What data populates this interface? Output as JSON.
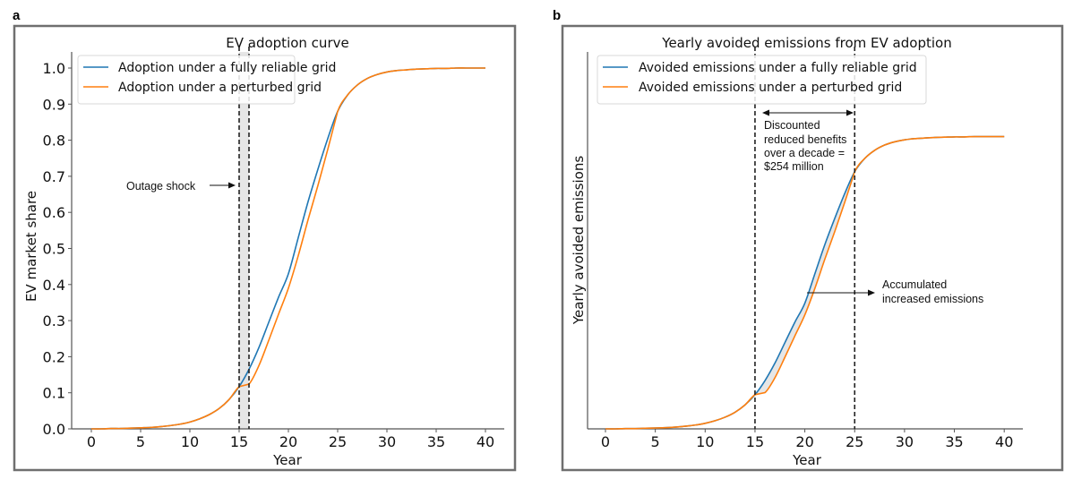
{
  "chart_data": [
    {
      "panel_label": "a",
      "type": "line",
      "title": "EV adoption curve",
      "xlabel": "Year",
      "ylabel": "EV market share",
      "xlim": [
        -2,
        42
      ],
      "ylim": [
        0,
        1.04
      ],
      "xticks": [
        0,
        5,
        10,
        15,
        20,
        25,
        30,
        35,
        40
      ],
      "yticks": [
        0.0,
        0.1,
        0.2,
        0.3,
        0.4,
        0.5,
        0.6,
        0.7,
        0.8,
        0.9,
        1.0
      ],
      "ytick_labels": [
        "0.0",
        "0.1",
        "0.2",
        "0.3",
        "0.4",
        "0.5",
        "0.6",
        "0.7",
        "0.8",
        "0.9",
        "1.0"
      ],
      "legend_position": "top-left",
      "grid": false,
      "x": [
        0,
        1,
        2,
        3,
        4,
        5,
        6,
        7,
        8,
        9,
        10,
        11,
        12,
        13,
        14,
        15,
        16,
        17,
        18,
        19,
        20,
        21,
        22,
        23,
        24,
        25,
        26,
        27,
        28,
        29,
        30,
        31,
        32,
        33,
        34,
        35,
        36,
        37,
        38,
        39,
        40
      ],
      "series": [
        {
          "name": "Adoption under a fully reliable grid",
          "color": "#1f77b4",
          "values": [
            0.0,
            0.0,
            0.001,
            0.001,
            0.002,
            0.003,
            0.004,
            0.006,
            0.009,
            0.013,
            0.019,
            0.028,
            0.04,
            0.057,
            0.082,
            0.117,
            0.165,
            0.225,
            0.295,
            0.365,
            0.43,
            0.53,
            0.63,
            0.72,
            0.805,
            0.88,
            0.925,
            0.953,
            0.971,
            0.982,
            0.989,
            0.993,
            0.995,
            0.997,
            0.998,
            0.999,
            0.999,
            1.0,
            1.0,
            1.0,
            1.0
          ]
        },
        {
          "name": "Adoption under a perturbed grid",
          "color": "#ff7f0e",
          "values": [
            0.0,
            0.0,
            0.001,
            0.001,
            0.002,
            0.003,
            0.004,
            0.006,
            0.009,
            0.013,
            0.019,
            0.028,
            0.04,
            0.057,
            0.082,
            0.117,
            0.124,
            0.175,
            0.245,
            0.318,
            0.39,
            0.48,
            0.58,
            0.675,
            0.775,
            0.88,
            0.925,
            0.953,
            0.971,
            0.982,
            0.989,
            0.993,
            0.995,
            0.997,
            0.998,
            0.999,
            0.999,
            1.0,
            1.0,
            1.0,
            1.0
          ]
        }
      ],
      "shaded_region": {
        "x_start": 15,
        "x_end": 16,
        "color": "#e6e6e6"
      },
      "vlines": [
        15,
        16
      ],
      "annotations": [
        {
          "text": "Outage shock",
          "arrow_to_x": 15,
          "at_y": 0.67
        }
      ]
    },
    {
      "panel_label": "b",
      "type": "line",
      "title": "Yearly avoided emissions from EV adoption",
      "xlabel": "Year",
      "ylabel": "Yearly avoided emissions",
      "xlim": [
        -2,
        42
      ],
      "ylim": [
        0,
        1.04
      ],
      "xticks": [
        0,
        5,
        10,
        15,
        20,
        25,
        30,
        35,
        40
      ],
      "yticks": [],
      "legend_position": "top-left",
      "grid": false,
      "scale_factor": 0.81,
      "x": [
        0,
        1,
        2,
        3,
        4,
        5,
        6,
        7,
        8,
        9,
        10,
        11,
        12,
        13,
        14,
        15,
        16,
        17,
        18,
        19,
        20,
        21,
        22,
        23,
        24,
        25,
        26,
        27,
        28,
        29,
        30,
        31,
        32,
        33,
        34,
        35,
        36,
        37,
        38,
        39,
        40
      ],
      "series": [
        {
          "name": "Avoided emissions under a fully reliable grid",
          "color": "#1f77b4",
          "values": [
            0.0,
            0.0,
            0.001,
            0.001,
            0.002,
            0.003,
            0.004,
            0.006,
            0.009,
            0.013,
            0.019,
            0.028,
            0.04,
            0.057,
            0.082,
            0.117,
            0.165,
            0.225,
            0.295,
            0.365,
            0.43,
            0.53,
            0.63,
            0.72,
            0.805,
            0.88,
            0.925,
            0.953,
            0.971,
            0.982,
            0.989,
            0.993,
            0.995,
            0.997,
            0.998,
            0.999,
            0.999,
            1.0,
            1.0,
            1.0,
            1.0
          ]
        },
        {
          "name": "Avoided emissions under a perturbed grid",
          "color": "#ff7f0e",
          "values": [
            0.0,
            0.0,
            0.001,
            0.001,
            0.002,
            0.003,
            0.004,
            0.006,
            0.009,
            0.013,
            0.019,
            0.028,
            0.04,
            0.057,
            0.082,
            0.117,
            0.124,
            0.175,
            0.245,
            0.318,
            0.39,
            0.48,
            0.58,
            0.675,
            0.775,
            0.88,
            0.925,
            0.953,
            0.971,
            0.982,
            0.989,
            0.993,
            0.995,
            0.997,
            0.998,
            0.999,
            0.999,
            1.0,
            1.0,
            1.0,
            1.0
          ]
        }
      ],
      "shaded_between_series": {
        "x_start": 15,
        "x_end": 25,
        "color": "#e6e6e6"
      },
      "vlines": [
        15,
        25
      ],
      "annotations": [
        {
          "lines": [
            "Discounted",
            "reduced benefits",
            "over a decade =",
            "$254 million"
          ],
          "double_arrow_from_x": 15,
          "double_arrow_to_x": 25
        },
        {
          "lines": [
            "Accumulated",
            "increased emissions"
          ],
          "arrow_from_x": 20
        }
      ]
    }
  ]
}
